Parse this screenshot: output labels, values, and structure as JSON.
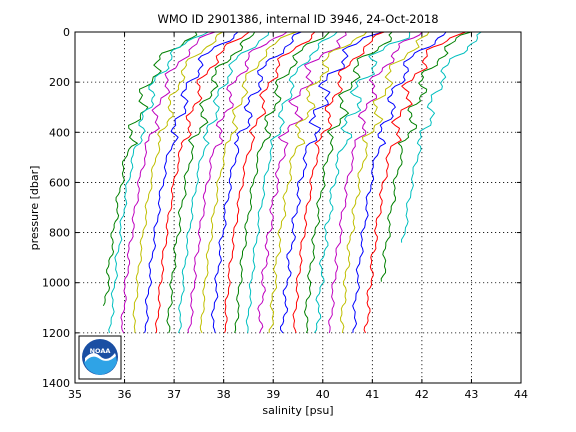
{
  "chart_data": {
    "type": "line",
    "title": "WMO ID 2901386, internal ID 3946, 24-Oct-2018",
    "xlabel": "salinity [psu]",
    "ylabel": "pressure [dbar]",
    "xlim": [
      35,
      44
    ],
    "ylim": [
      0,
      1400
    ],
    "y_reversed": true,
    "grid": true,
    "x_ticks": [
      35,
      36,
      37,
      38,
      39,
      40,
      41,
      42,
      43,
      44
    ],
    "y_ticks": [
      0,
      200,
      400,
      600,
      800,
      1000,
      1200,
      1400
    ],
    "x_tick_labels": [
      "35",
      "36",
      "37",
      "38",
      "39",
      "40",
      "41",
      "42",
      "43",
      "44"
    ],
    "y_tick_labels": [
      "0",
      "200",
      "400",
      "600",
      "800",
      "1000",
      "1200",
      "1400"
    ],
    "colors": [
      "#008000",
      "#00bfbf",
      "#bf00bf",
      "#bfbf00",
      "#0000ff",
      "#ff0000"
    ],
    "profile_shape": {
      "pressure": [
        0,
        50,
        100,
        150,
        200,
        250,
        300,
        350,
        400,
        500,
        600,
        700,
        800,
        900,
        1000,
        1100,
        1200
      ],
      "salinity_offset": [
        1.85,
        1.5,
        1.2,
        1.05,
        0.9,
        0.82,
        0.75,
        0.68,
        0.6,
        0.45,
        0.35,
        0.27,
        0.2,
        0.13,
        0.08,
        0.03,
        0.0
      ]
    },
    "series": [
      {
        "base": 35.58,
        "end_pressure": 1100,
        "amp": 0.1
      },
      {
        "base": 35.72,
        "end_pressure": 1200,
        "amp": 0.08
      },
      {
        "base": 35.95,
        "end_pressure": 1200,
        "amp": 0.08
      },
      {
        "base": 36.18,
        "end_pressure": 1200,
        "amp": 0.07
      },
      {
        "base": 36.42,
        "end_pressure": 1200,
        "amp": 0.08
      },
      {
        "base": 36.65,
        "end_pressure": 1200,
        "amp": 0.07
      },
      {
        "base": 36.88,
        "end_pressure": 1200,
        "amp": 0.09
      },
      {
        "base": 37.1,
        "end_pressure": 1200,
        "amp": 0.07
      },
      {
        "base": 37.32,
        "end_pressure": 1200,
        "amp": 0.08
      },
      {
        "base": 37.55,
        "end_pressure": 1200,
        "amp": 0.07
      },
      {
        "base": 37.78,
        "end_pressure": 1200,
        "amp": 0.09
      },
      {
        "base": 38.02,
        "end_pressure": 1200,
        "amp": 0.07
      },
      {
        "base": 38.25,
        "end_pressure": 1200,
        "amp": 0.08
      },
      {
        "base": 38.48,
        "end_pressure": 1200,
        "amp": 0.07
      },
      {
        "base": 38.72,
        "end_pressure": 1200,
        "amp": 0.12
      },
      {
        "base": 38.95,
        "end_pressure": 1200,
        "amp": 0.1
      },
      {
        "base": 39.2,
        "end_pressure": 1200,
        "amp": 0.12
      },
      {
        "base": 39.42,
        "end_pressure": 1200,
        "amp": 0.08
      },
      {
        "base": 39.65,
        "end_pressure": 1200,
        "amp": 0.1
      },
      {
        "base": 39.88,
        "end_pressure": 1200,
        "amp": 0.12
      },
      {
        "base": 40.15,
        "end_pressure": 1200,
        "amp": 0.09
      },
      {
        "base": 40.38,
        "end_pressure": 1200,
        "amp": 0.1
      },
      {
        "base": 40.62,
        "end_pressure": 1200,
        "amp": 0.09
      },
      {
        "base": 40.88,
        "end_pressure": 1200,
        "amp": 0.1
      },
      {
        "base": 41.12,
        "end_pressure": 1000,
        "amp": 0.1
      },
      {
        "base": 41.45,
        "end_pressure": 850,
        "amp": 0.08
      }
    ]
  },
  "logo": {
    "text": "NOAA"
  }
}
